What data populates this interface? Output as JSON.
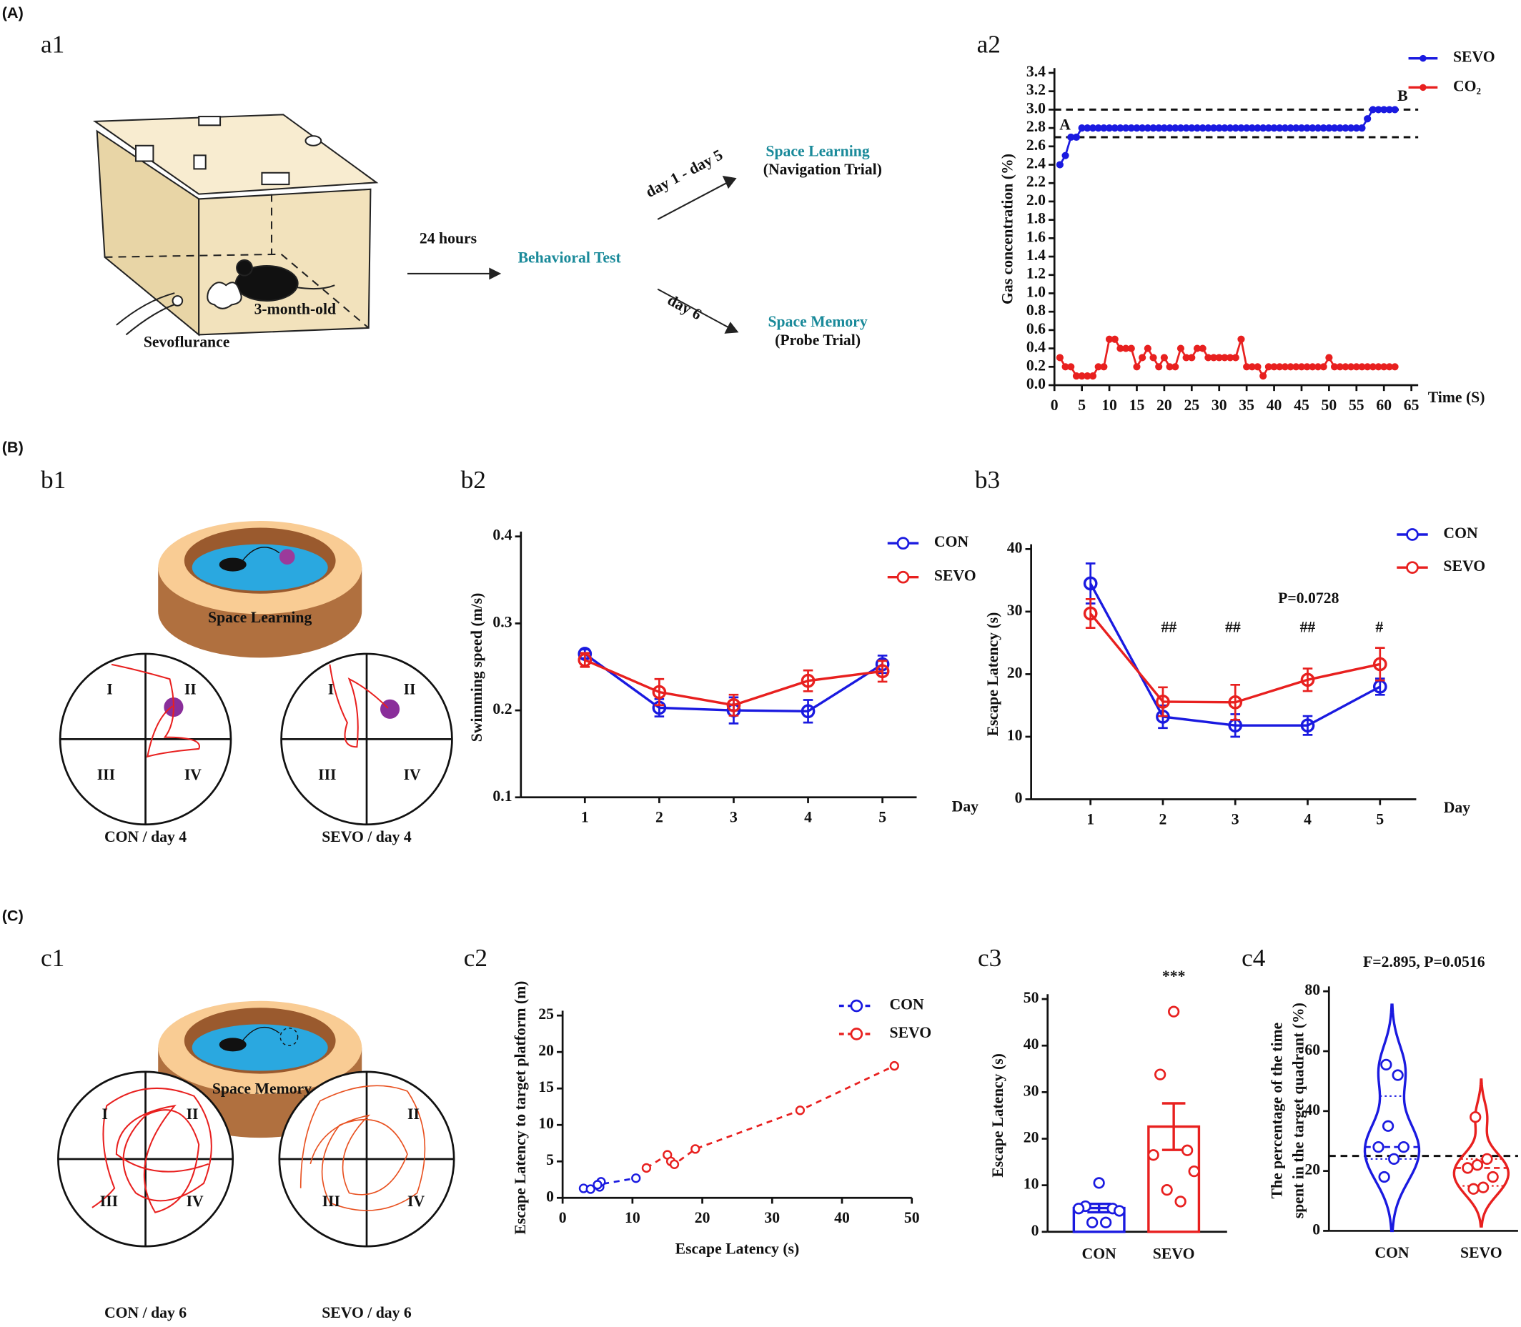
{
  "figure": {
    "panel_labels": [
      "(A)",
      "(B)",
      "(C)"
    ],
    "sub_labels": [
      "a1",
      "a2",
      "b1",
      "b2",
      "b3",
      "c1",
      "c2",
      "c3",
      "c4"
    ],
    "a1": {
      "interval": "24 hours",
      "test": "Behavioral Test",
      "branch1_days": "day 1 - day 5",
      "branch1_title": "Space Learning",
      "branch1_sub": "(Navigation Trial)",
      "branch2_days": "day 6",
      "branch2_title": "Space Memory",
      "branch2_sub": "(Probe Trial)",
      "mouse": "3-month-old",
      "gas": "Sevoflurance"
    },
    "b1": {
      "pool": "Space Learning",
      "quadrants": [
        "I",
        "II",
        "III",
        "IV"
      ],
      "captions": [
        "CON / day 4",
        "SEVO / day 4"
      ]
    },
    "c1": {
      "pool": "Space Memory",
      "quadrants": [
        "I",
        "II",
        "III",
        "IV"
      ],
      "captions": [
        "CON / day 6",
        "SEVO / day 6"
      ]
    }
  },
  "chart_data": [
    {
      "type": "line",
      "xlabel": "Time (S)",
      "ylabel": "Gas concentration (%)",
      "x": [
        1,
        2,
        3,
        4,
        5,
        6,
        7,
        8,
        9,
        10,
        11,
        12,
        13,
        14,
        15,
        16,
        17,
        18,
        19,
        20,
        21,
        22,
        23,
        24,
        25,
        26,
        27,
        28,
        29,
        30,
        31,
        32,
        33,
        34,
        35,
        36,
        37,
        38,
        39,
        40,
        41,
        42,
        43,
        44,
        45,
        46,
        47,
        48,
        49,
        50,
        51,
        52,
        53,
        54,
        55,
        56,
        57,
        58,
        59,
        60,
        61,
        62
      ],
      "series": [
        {
          "name": "SEVO",
          "color": "#1a1ae0",
          "values": [
            2.4,
            2.5,
            2.7,
            2.7,
            2.8,
            2.8,
            2.8,
            2.8,
            2.8,
            2.8,
            2.8,
            2.8,
            2.8,
            2.8,
            2.8,
            2.8,
            2.8,
            2.8,
            2.8,
            2.8,
            2.8,
            2.8,
            2.8,
            2.8,
            2.8,
            2.8,
            2.8,
            2.8,
            2.8,
            2.8,
            2.8,
            2.8,
            2.8,
            2.8,
            2.8,
            2.8,
            2.8,
            2.8,
            2.8,
            2.8,
            2.8,
            2.8,
            2.8,
            2.8,
            2.8,
            2.8,
            2.8,
            2.8,
            2.8,
            2.8,
            2.8,
            2.8,
            2.8,
            2.8,
            2.8,
            2.8,
            2.9,
            3.0,
            3.0,
            3.0,
            3.0,
            3.0
          ]
        },
        {
          "name": "CO₂",
          "color": "#e8201f",
          "values": [
            0.3,
            0.2,
            0.2,
            0.1,
            0.1,
            0.1,
            0.1,
            0.2,
            0.2,
            0.5,
            0.5,
            0.4,
            0.4,
            0.4,
            0.2,
            0.3,
            0.4,
            0.3,
            0.2,
            0.3,
            0.2,
            0.2,
            0.4,
            0.3,
            0.3,
            0.4,
            0.4,
            0.3,
            0.3,
            0.3,
            0.3,
            0.3,
            0.3,
            0.5,
            0.2,
            0.2,
            0.2,
            0.1,
            0.2,
            0.2,
            0.2,
            0.2,
            0.2,
            0.2,
            0.2,
            0.2,
            0.2,
            0.2,
            0.2,
            0.3,
            0.2,
            0.2,
            0.2,
            0.2,
            0.2,
            0.2,
            0.2,
            0.2,
            0.2,
            0.2,
            0.2,
            0.2
          ]
        }
      ],
      "reference_lines": [
        3.0,
        2.7
      ],
      "annotations": [
        "A",
        "B"
      ],
      "xlim": [
        0,
        65
      ],
      "xticks": [
        0,
        5,
        10,
        15,
        20,
        25,
        30,
        35,
        40,
        45,
        50,
        55,
        60,
        65
      ],
      "ylim": [
        0,
        3.4
      ],
      "yticks": [
        {
          "value": 0,
          "label": "0.0"
        },
        0.2,
        0.4,
        0.6,
        0.8,
        {
          "value": 1,
          "label": "1.0"
        },
        1.2,
        1.4,
        1.6,
        1.8,
        {
          "value": 2,
          "label": "2.0"
        },
        2.2,
        2.4,
        2.6,
        2.8,
        {
          "value": 3,
          "label": "3.0"
        },
        3.2,
        3.4
      ]
    },
    {
      "type": "line",
      "xlabel": "Day",
      "ylabel": "Swimming speed (m/s)",
      "x": [
        1,
        2,
        3,
        4,
        5
      ],
      "series": [
        {
          "name": "CON",
          "color": "#1a1ae0",
          "values": [
            0.265,
            0.203,
            0.2,
            0.199,
            0.253
          ],
          "errors": [
            0.005,
            0.01,
            0.015,
            0.013,
            0.01
          ]
        },
        {
          "name": "SEVO",
          "color": "#e8201f",
          "values": [
            0.258,
            0.221,
            0.206,
            0.234,
            0.245
          ],
          "errors": [
            0.008,
            0.015,
            0.012,
            0.012,
            0.012
          ]
        }
      ],
      "xlim": [
        0.14,
        5.46
      ],
      "xticks": [
        1,
        2,
        3,
        4,
        5
      ],
      "ylim": [
        0.1,
        0.4
      ],
      "yticks": [
        0.1,
        0.2,
        0.3,
        0.4
      ]
    },
    {
      "type": "line",
      "xlabel": "Day",
      "ylabel": "Escape Latency (s)",
      "x": [
        1,
        2,
        3,
        4,
        5
      ],
      "series": [
        {
          "name": "CON",
          "color": "#1a1ae0",
          "values": [
            34.5,
            13.2,
            11.8,
            11.8,
            18
          ],
          "errors": [
            3.2,
            1.8,
            1.8,
            1.5,
            1.3
          ]
        },
        {
          "name": "SEVO",
          "color": "#e8201f",
          "values": [
            29.7,
            15.6,
            15.5,
            19.1,
            21.6
          ],
          "errors": [
            2.3,
            2.3,
            2.8,
            1.8,
            2.6
          ]
        }
      ],
      "annotations": [
        "P=0.0728",
        "##",
        "##",
        "##",
        "#"
      ],
      "xlim": [
        0.18,
        5.5
      ],
      "xticks": [
        1,
        2,
        3,
        4,
        5
      ],
      "ylim": [
        0,
        40
      ],
      "yticks": [
        0,
        10,
        20,
        30,
        40
      ]
    },
    {
      "type": "scatter",
      "xlabel": "Escape Latency (s)",
      "ylabel": "Escape Latency to target platform (m)",
      "series": [
        {
          "name": "CON",
          "color": "#1a1ae0",
          "x": [
            3,
            4,
            5.3,
            5.5,
            5,
            10.5
          ],
          "values": [
            1.3,
            1.2,
            1.5,
            2.2,
            1.8,
            2.7
          ]
        },
        {
          "name": "SEVO",
          "color": "#e8201f",
          "x": [
            12,
            15,
            15.5,
            16,
            19,
            34,
            47.5
          ],
          "values": [
            4.1,
            5.9,
            5.0,
            4.6,
            6.7,
            12,
            18.1
          ]
        }
      ],
      "xlim": [
        0,
        50
      ],
      "xticks": [
        0,
        10,
        20,
        30,
        40,
        50
      ],
      "ylim": [
        0,
        25
      ],
      "yticks": [
        0,
        5,
        10,
        15,
        20,
        25
      ]
    },
    {
      "type": "bar",
      "ylabel": "Escape Latency (s)",
      "categories": [
        "CON",
        "SEVO"
      ],
      "colors": [
        "#1a1ae0",
        "#e8201f"
      ],
      "values": [
        5.1,
        22.6
      ],
      "errors": [
        0.9,
        5
      ],
      "points": [
        [
          10.5,
          5.5,
          5.0,
          5.0,
          4.5,
          2.0,
          2.0
        ],
        [
          47.3,
          33.8,
          17.5,
          16.5,
          13,
          9,
          6.5
        ]
      ],
      "annotations": [
        "***"
      ],
      "ylim": [
        0,
        50
      ],
      "yticks": [
        0,
        10,
        20,
        30,
        40,
        50
      ]
    },
    {
      "type": "violin",
      "title": "F=2.895, P=0.0516",
      "ylabel": [
        "The percentage of the time",
        "spent in the target quadrant (%)"
      ],
      "categories": [
        "CON",
        "SEVO"
      ],
      "colors": [
        "#1a1ae0",
        "#e8201f"
      ],
      "points": [
        [
          55.5,
          52,
          35,
          28,
          28,
          24,
          18
        ],
        [
          38,
          24,
          22,
          21,
          18,
          14.5,
          14
        ]
      ],
      "medians": [
        28,
        21
      ],
      "quartiles": [
        [
          24,
          45
        ],
        [
          15,
          24
        ]
      ],
      "reference_lines": [
        25
      ],
      "ylim": [
        0,
        80
      ],
      "yticks": [
        0,
        20,
        40,
        60,
        80
      ]
    }
  ]
}
